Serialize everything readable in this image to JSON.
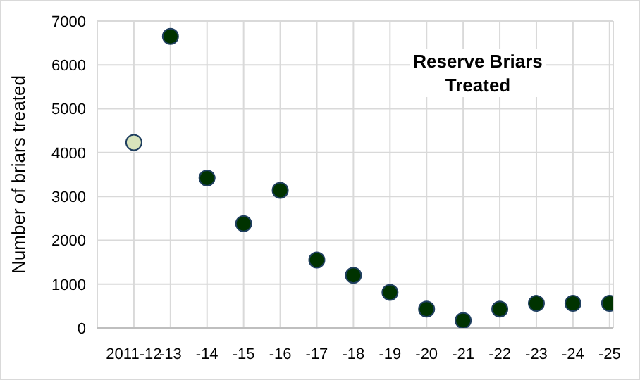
{
  "chart_data": {
    "type": "scatter",
    "title": "Reserve Briars Treated",
    "ylabel": "Number of briars treated",
    "categories": [
      "2011-12",
      "-13",
      "-14",
      "-15",
      "-16",
      "-17",
      "-18",
      "-19",
      "-20",
      "-21",
      "-22",
      "-23",
      "-24",
      "-25"
    ],
    "values": [
      4230,
      6650,
      3420,
      2380,
      3140,
      1550,
      1200,
      810,
      430,
      170,
      430,
      560,
      560,
      560
    ],
    "colors": [
      "#d8e4bc",
      "#003300",
      "#003300",
      "#003300",
      "#003300",
      "#003300",
      "#003300",
      "#003300",
      "#003300",
      "#003300",
      "#003300",
      "#003300",
      "#003300",
      "#003300"
    ],
    "ylim": [
      0,
      7000
    ],
    "yticks": [
      0,
      1000,
      2000,
      3000,
      4000,
      5000,
      6000,
      7000
    ],
    "grid": true,
    "marker": "circle"
  }
}
